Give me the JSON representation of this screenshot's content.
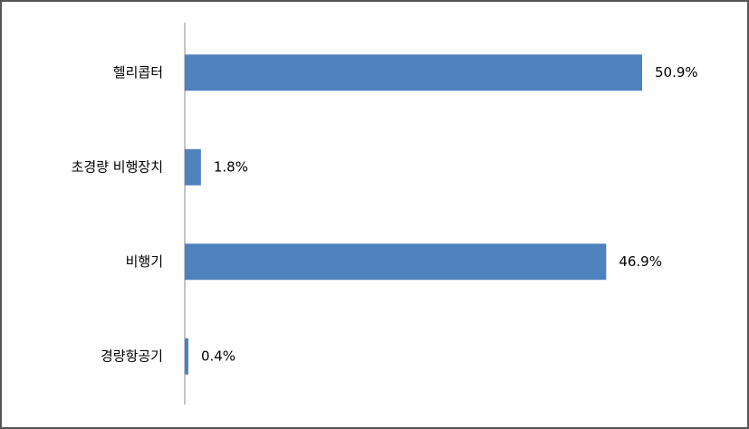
{
  "chart_data": {
    "type": "bar",
    "orientation": "horizontal",
    "categories": [
      "헬리콥터",
      "초경량 비행장치",
      "비행기",
      "경량항공기"
    ],
    "values": [
      50.9,
      1.8,
      46.9,
      0.4
    ],
    "value_labels": [
      "50.9%",
      "1.8%",
      "46.9%",
      "0.4%"
    ],
    "color": "#4f81bd"
  }
}
